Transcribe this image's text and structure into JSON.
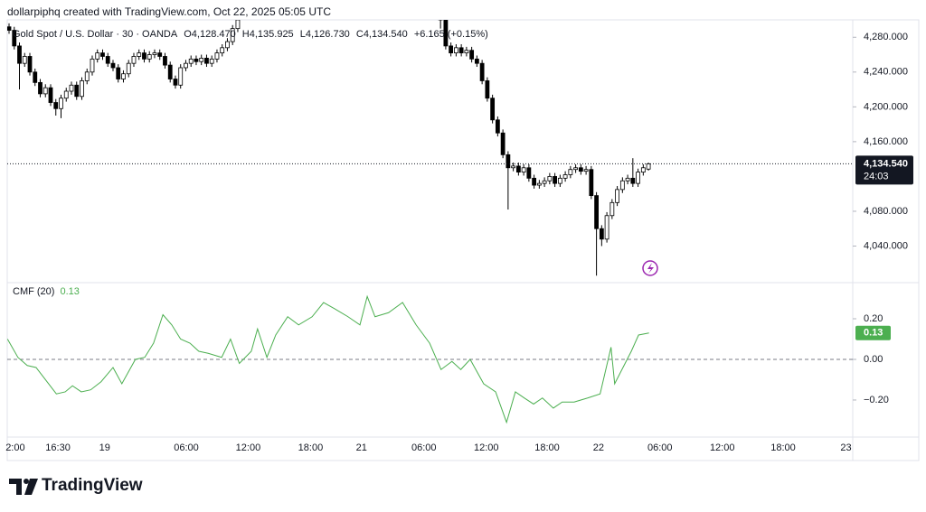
{
  "header": {
    "credit": "dollarpiphq created with TradingView.com, Oct 22, 2025 05:05 UTC"
  },
  "footer": {
    "brand": "TradingView"
  },
  "chart_data": [
    {
      "type": "candlestick",
      "title": "Gold Spot / U.S. Dollar · 30 · OANDA",
      "ohlc_labels": [
        "O4,128.470",
        "H4,135.925",
        "L4,126.730",
        "C4,134.540",
        "+6.165 (+0.15%)"
      ],
      "up_color": "#ffffff",
      "down_color": "#000000",
      "border_color": "#000000",
      "x": [
        0,
        1,
        2,
        3,
        4,
        5,
        6,
        7,
        8,
        9,
        10,
        11,
        12,
        13,
        14,
        15,
        16,
        17,
        18,
        19,
        20,
        21,
        22,
        23,
        24,
        25,
        26,
        27,
        28,
        29,
        30,
        31,
        32,
        33,
        34,
        35,
        36,
        37,
        38,
        39,
        40,
        41,
        42,
        43,
        44,
        83,
        84,
        85,
        86,
        87,
        88,
        89,
        90,
        91,
        92,
        93,
        94,
        95,
        96,
        97,
        98,
        99,
        100,
        101,
        102,
        103,
        104,
        105,
        106,
        107,
        108,
        109,
        110,
        111,
        112,
        113,
        114,
        115,
        116,
        117,
        118,
        119,
        120,
        121,
        122,
        123
      ],
      "open": [
        4292,
        4288,
        4270,
        4250,
        4258,
        4240,
        4228,
        4215,
        4222,
        4205,
        4198,
        4210,
        4218,
        4225,
        4212,
        4230,
        4240,
        4255,
        4262,
        4258,
        4250,
        4245,
        4232,
        4238,
        4250,
        4258,
        4262,
        4255,
        4260,
        4262,
        4258,
        4248,
        4232,
        4225,
        4245,
        4250,
        4255,
        4252,
        4256,
        4250,
        4255,
        4262,
        4268,
        4275,
        4290,
        4310,
        4300,
        4270,
        4262,
        4268,
        4262,
        4265,
        4255,
        4250,
        4230,
        4210,
        4185,
        4170,
        4145,
        4130,
        4132,
        4125,
        4130,
        4118,
        4110,
        4112,
        4115,
        4120,
        4112,
        4118,
        4122,
        4128,
        4130,
        4126,
        4128,
        4098,
        4060,
        4048,
        4075,
        4090,
        4105,
        4115,
        4118,
        4112,
        4125,
        4128.47
      ],
      "high": [
        4296,
        4292,
        4274,
        4262,
        4262,
        4244,
        4232,
        4226,
        4226,
        4209,
        4214,
        4222,
        4229,
        4229,
        4234,
        4244,
        4259,
        4266,
        4266,
        4262,
        4254,
        4249,
        4242,
        4254,
        4262,
        4266,
        4266,
        4264,
        4266,
        4266,
        4262,
        4252,
        4236,
        4249,
        4254,
        4259,
        4259,
        4260,
        4260,
        4259,
        4266,
        4272,
        4279,
        4294,
        4304,
        4314,
        4304,
        4274,
        4272,
        4272,
        4269,
        4269,
        4259,
        4254,
        4234,
        4214,
        4189,
        4174,
        4149,
        4136,
        4136,
        4134,
        4134,
        4122,
        4116,
        4119,
        4124,
        4124,
        4122,
        4126,
        4132,
        4134,
        4134,
        4132,
        4132,
        4102,
        4064,
        4079,
        4094,
        4109,
        4119,
        4122,
        4141,
        4129,
        4134,
        4135.925
      ],
      "low": [
        4284,
        4266,
        4220,
        4246,
        4236,
        4224,
        4211,
        4211,
        4201,
        4190,
        4187,
        4206,
        4214,
        4208,
        4208,
        4226,
        4236,
        4251,
        4254,
        4246,
        4241,
        4228,
        4228,
        4234,
        4246,
        4254,
        4251,
        4251,
        4256,
        4254,
        4244,
        4228,
        4221,
        4221,
        4241,
        4246,
        4248,
        4248,
        4246,
        4246,
        4251,
        4258,
        4264,
        4271,
        4286,
        4290,
        4266,
        4258,
        4258,
        4258,
        4258,
        4251,
        4246,
        4226,
        4206,
        4181,
        4166,
        4141,
        4082,
        4126,
        4121,
        4121,
        4114,
        4106,
        4106,
        4108,
        4111,
        4108,
        4108,
        4114,
        4118,
        4124,
        4122,
        4122,
        4094,
        4006,
        4040,
        4044,
        4071,
        4086,
        4101,
        4111,
        4108,
        4108,
        4121,
        4126.73
      ],
      "close": [
        4288,
        4270,
        4250,
        4258,
        4240,
        4228,
        4215,
        4222,
        4205,
        4198,
        4210,
        4218,
        4225,
        4212,
        4230,
        4240,
        4255,
        4262,
        4258,
        4250,
        4245,
        4232,
        4238,
        4250,
        4258,
        4262,
        4255,
        4260,
        4262,
        4258,
        4248,
        4232,
        4225,
        4245,
        4250,
        4255,
        4252,
        4256,
        4250,
        4255,
        4262,
        4268,
        4275,
        4290,
        4300,
        4300,
        4270,
        4262,
        4268,
        4262,
        4265,
        4255,
        4250,
        4230,
        4210,
        4185,
        4170,
        4145,
        4130,
        4132,
        4125,
        4130,
        4118,
        4110,
        4112,
        4115,
        4120,
        4112,
        4118,
        4122,
        4128,
        4130,
        4126,
        4128,
        4098,
        4060,
        4048,
        4075,
        4090,
        4105,
        4115,
        4118,
        4112,
        4125,
        4130,
        4134.54
      ],
      "ylim": [
        3999,
        4300
      ],
      "yticks": [
        {
          "value": 4280,
          "label": "4,280.000"
        },
        {
          "value": 4240,
          "label": "4,240.000"
        },
        {
          "value": 4200,
          "label": "4,200.000"
        },
        {
          "value": 4160,
          "label": "4,160.000"
        },
        {
          "value": 4080,
          "label": "4,080.000"
        },
        {
          "value": 4040,
          "label": "4,040.000"
        }
      ],
      "last_price": {
        "value": 4134.54,
        "label": "4,134.540"
      },
      "countdown": "24:03"
    },
    {
      "type": "line",
      "title": "CMF (20)",
      "value_label": "0.13",
      "zero_line": true,
      "series": [
        {
          "name": "CMF (20)",
          "color": "#4caf50",
          "x": [
            -0.3,
            1.7,
            3.5,
            5.2,
            7,
            9.1,
            10.8,
            12.2,
            13.9,
            15.7,
            17.7,
            20,
            21.7,
            24.3,
            26.1,
            27.8,
            29.6,
            31.3,
            33,
            34.8,
            36.5,
            38.3,
            40.9,
            42.6,
            44.3,
            46.6,
            47.8,
            49.6,
            51.3,
            53.6,
            55.7,
            58.3,
            60.5,
            62.6,
            65.2,
            67.5,
            68.9,
            70.4,
            73,
            75.7,
            78.3,
            80.9,
            83.1,
            85.2,
            86.9,
            88.7,
            91.3,
            93.6,
            95.7,
            97.4,
            99.1,
            100.9,
            102.6,
            104.7,
            106.4,
            108.7,
            111.3,
            113.7,
            115.8,
            116.5,
            118.3,
            119.7,
            121.1,
            123.1
          ],
          "values": [
            0.1,
            0.01,
            -0.03,
            -0.04,
            -0.1,
            -0.17,
            -0.16,
            -0.13,
            -0.16,
            -0.15,
            -0.11,
            -0.04,
            -0.12,
            0,
            0.01,
            0.08,
            0.22,
            0.17,
            0.1,
            0.08,
            0.04,
            0.03,
            0.01,
            0.1,
            -0.02,
            0.04,
            0.15,
            0.01,
            0.12,
            0.21,
            0.17,
            0.21,
            0.28,
            0.25,
            0.21,
            0.17,
            0.31,
            0.21,
            0.23,
            0.28,
            0.17,
            0.08,
            -0.05,
            -0.01,
            -0.05,
            0,
            -0.12,
            -0.16,
            -0.31,
            -0.16,
            -0.19,
            -0.22,
            -0.19,
            -0.24,
            -0.21,
            -0.21,
            -0.19,
            -0.17,
            0.06,
            -0.12,
            -0.03,
            0.04,
            0.12,
            0.13
          ]
        }
      ],
      "ylim": [
        -0.378,
        0.369
      ],
      "yticks": [
        {
          "value": 0.2,
          "label": "0.20"
        },
        {
          "value": 0,
          "label": "0.00"
        },
        {
          "value": -0.2,
          "label": "−0.20"
        }
      ],
      "xlim": [
        -0.35,
        162.3
      ],
      "xticks": [
        {
          "value": 1.2,
          "label": "2:00"
        },
        {
          "value": 9.4,
          "label": "16:30"
        },
        {
          "value": 18.4,
          "label": "19"
        },
        {
          "value": 34.1,
          "label": "06:00"
        },
        {
          "value": 46,
          "label": "12:00"
        },
        {
          "value": 58,
          "label": "18:00"
        },
        {
          "value": 67.8,
          "label": "21"
        },
        {
          "value": 79.8,
          "label": "06:00"
        },
        {
          "value": 91.8,
          "label": "12:00"
        },
        {
          "value": 103.5,
          "label": "18:00"
        },
        {
          "value": 113.4,
          "label": "22"
        },
        {
          "value": 125.2,
          "label": "06:00"
        },
        {
          "value": 137.2,
          "label": "12:00"
        },
        {
          "value": 148.9,
          "label": "18:00"
        },
        {
          "value": 161,
          "label": "23"
        }
      ]
    }
  ]
}
